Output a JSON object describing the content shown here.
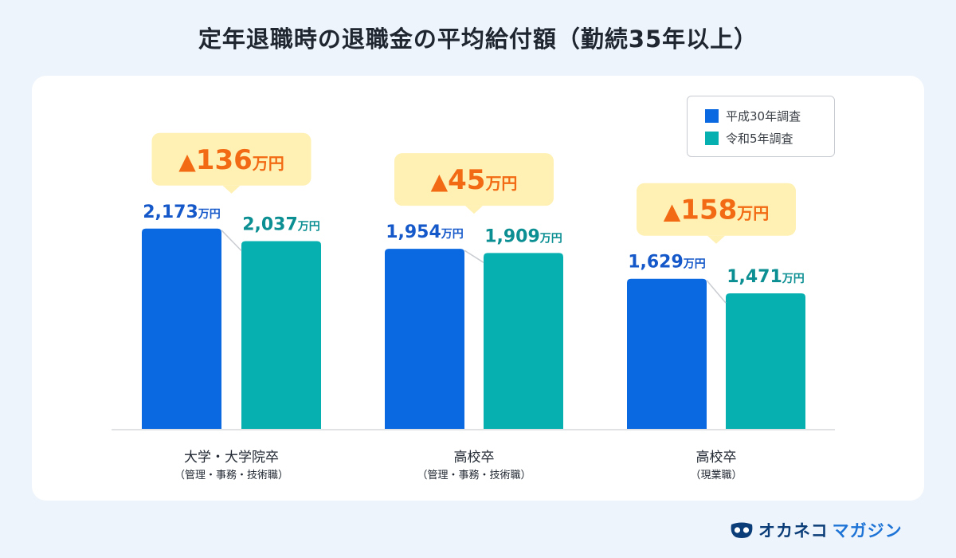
{
  "title": "定年退職時の退職金の平均給付額（勤続35年以上）",
  "legend": {
    "items": [
      {
        "label": "平成30年調査",
        "color": "#0a68e0"
      },
      {
        "label": "令和5年調査",
        "color": "#07b0b0"
      }
    ]
  },
  "brand": {
    "name": "オカネコ",
    "sub": "マガジン"
  },
  "chart_data": {
    "type": "bar",
    "unit": "万円",
    "categories": [
      {
        "label": "大学・大学院卒",
        "sublabel": "（管理・事務・技術職）"
      },
      {
        "label": "高校卒",
        "sublabel": "（管理・事務・技術職）"
      },
      {
        "label": "高校卒",
        "sublabel": "（現業職）"
      }
    ],
    "series": [
      {
        "name": "平成30年調査",
        "color": "#0a68e0",
        "label_color": "#1558c9",
        "values": [
          2173,
          1954,
          1629
        ],
        "value_labels": [
          "2,173",
          "1,954",
          "1,629"
        ]
      },
      {
        "name": "令和5年調査",
        "color": "#07b0b0",
        "label_color": "#0c8f93",
        "values": [
          2037,
          1909,
          1471
        ],
        "value_labels": [
          "2,037",
          "1,909",
          "1,471"
        ]
      }
    ],
    "differences": [
      {
        "mark": "▲",
        "value": "136",
        "unit": "万円"
      },
      {
        "mark": "▲",
        "value": "45",
        "unit": "万円"
      },
      {
        "mark": "▲",
        "value": "158",
        "unit": "万円"
      }
    ],
    "colors": {
      "callout_bg": "#fff0b3",
      "callout_text": "#f26a13",
      "connector": "#c9ccd1",
      "axis": "#d5d8dc"
    }
  }
}
